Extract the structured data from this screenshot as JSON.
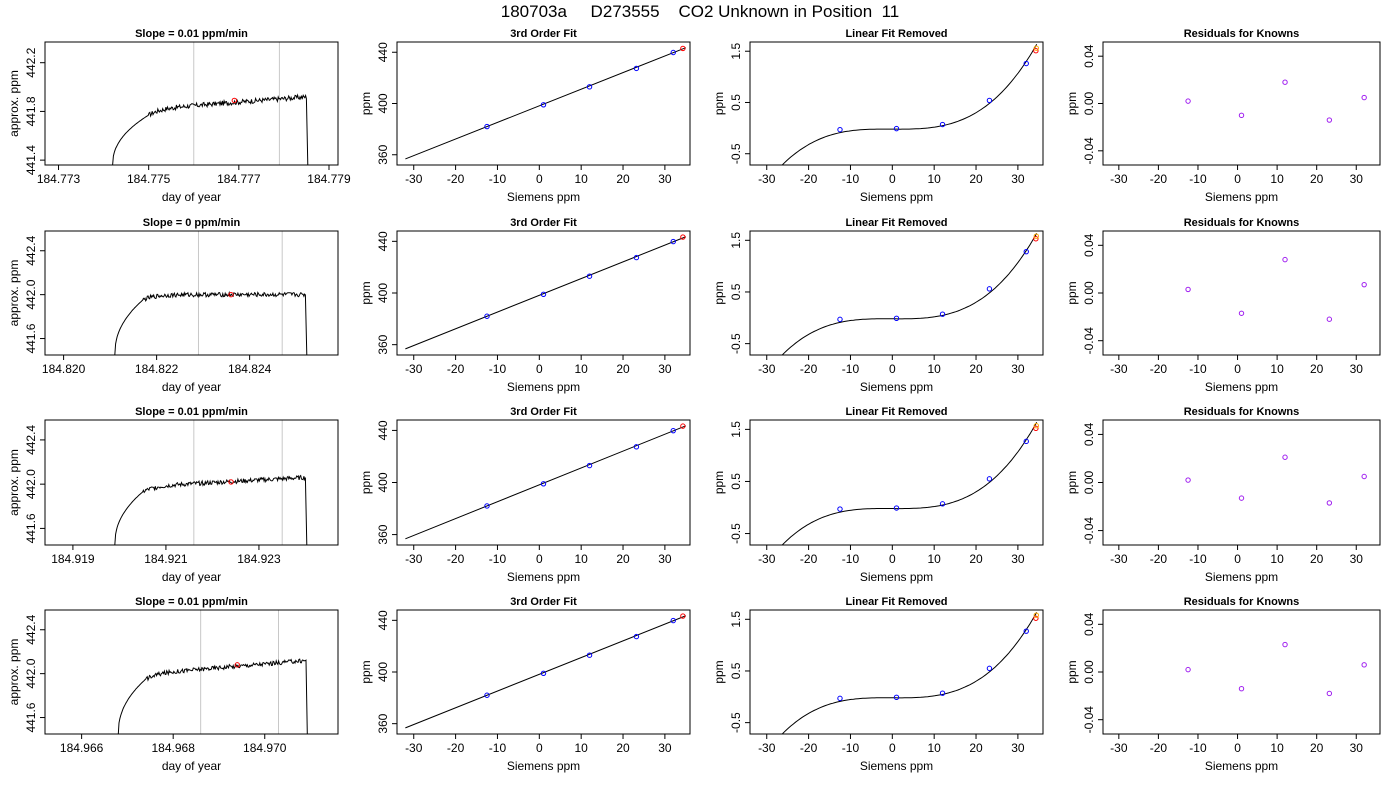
{
  "page_title": "180703a     D273555    CO2 Unknown in Position  11",
  "colors": {
    "trace": "#000000",
    "window_lines": "#c8c8c8",
    "known_points": "#0000ff",
    "unknown_point": "#ff0000",
    "unknown_alt_point": "#ffa500",
    "residual_points": "#a020f0"
  },
  "chart_data": [
    {
      "type": "line",
      "title": "Slope =  0.01  ppm/min",
      "xlabel": "day of year",
      "ylabel": "approx. ppm",
      "xlim": [
        184.7727,
        184.7792
      ],
      "ylim": [
        441.36,
        442.37
      ],
      "xticks": [
        "184.773",
        "184.775",
        "184.777",
        "184.779"
      ],
      "xtick_values": [
        184.773,
        184.775,
        184.777,
        184.779
      ],
      "yticks": [
        "441.4",
        "441.8",
        "442.2"
      ],
      "ytick_values": [
        441.4,
        441.8,
        442.2
      ],
      "trace": {
        "x_start": 184.7742,
        "x_rise_end": 184.775,
        "x_end": 184.7785,
        "plateau_start": 441.82,
        "plateau_end": 441.92,
        "y_bottom": 441.36
      },
      "window_lines": [
        184.776,
        184.7779
      ],
      "unknown_point": {
        "x": 184.7769,
        "y": 441.89
      }
    },
    {
      "type": "line",
      "title": "3rd Order Fit",
      "xlabel": "Siemens ppm",
      "ylabel": "ppm",
      "xlim": [
        -34,
        36
      ],
      "ylim": [
        352,
        448
      ],
      "xticks": [
        "-30",
        "-20",
        "-10",
        "0",
        "10",
        "20",
        "30"
      ],
      "xtick_values": [
        -30,
        -20,
        -10,
        0,
        10,
        20,
        30
      ],
      "yticks": [
        "360",
        "400",
        "440"
      ],
      "ytick_values": [
        360,
        400,
        440
      ],
      "fit": {
        "x_from": -32,
        "x_to": 35,
        "intercept": 398.2,
        "slope": 1.296
      },
      "knowns": [
        {
          "x": -12.5,
          "y": 382.0
        },
        {
          "x": 1.0,
          "y": 399.0
        },
        {
          "x": 12.0,
          "y": 413.0
        },
        {
          "x": 23.2,
          "y": 427.4
        },
        {
          "x": 32.0,
          "y": 439.8
        }
      ],
      "unknown": [
        {
          "x": 34.3,
          "y": 443.0
        }
      ]
    },
    {
      "type": "line",
      "title": "Linear Fit Removed",
      "xlabel": "Siemens ppm",
      "ylabel": "ppm",
      "xlim": [
        -34,
        36
      ],
      "ylim": [
        -0.72,
        1.68
      ],
      "xticks": [
        "-30",
        "-20",
        "-10",
        "0",
        "10",
        "20",
        "30"
      ],
      "xtick_values": [
        -30,
        -20,
        -10,
        0,
        10,
        20,
        30
      ],
      "yticks": [
        "-0.5",
        "0.5",
        "1.5"
      ],
      "ytick_values": [
        -0.5,
        0.5,
        1.5
      ],
      "curve": {
        "x_from": -32,
        "x_to": 34.5,
        "coeffs": [
          -0.02,
          -0.00045,
          2.4e-05,
          4e-05
        ]
      },
      "knowns": [
        {
          "x": -12.5,
          "y": -0.03
        },
        {
          "x": 1.0,
          "y": -0.01
        },
        {
          "x": 12.0,
          "y": 0.07
        },
        {
          "x": 23.2,
          "y": 0.54
        },
        {
          "x": 32.0,
          "y": 1.26
        }
      ],
      "unknown": [
        {
          "x": 34.3,
          "y": 1.51
        },
        {
          "x": 34.4,
          "y": 1.56
        }
      ]
    },
    {
      "type": "scatter",
      "title": "Residuals for Knowns",
      "xlabel": "Siemens ppm",
      "ylabel": "ppm",
      "xlim": [
        -34,
        36
      ],
      "ylim": [
        -0.052,
        0.052
      ],
      "xticks": [
        "-30",
        "-20",
        "-10",
        "0",
        "10",
        "20",
        "30"
      ],
      "xtick_values": [
        -30,
        -20,
        -10,
        0,
        10,
        20,
        30
      ],
      "yticks": [
        "-0.04",
        "0.00",
        "0.04"
      ],
      "ytick_values": [
        -0.04,
        0.0,
        0.04
      ],
      "points": [
        {
          "x": -12.5,
          "y": 0.002
        },
        {
          "x": 1.0,
          "y": -0.01
        },
        {
          "x": 12.0,
          "y": 0.018
        },
        {
          "x": 23.2,
          "y": -0.014
        },
        {
          "x": 32.0,
          "y": 0.005
        }
      ]
    },
    {
      "type": "line",
      "title": "Slope =  0  ppm/min",
      "xlabel": "day of year",
      "ylabel": "approx. ppm",
      "xlim": [
        184.8196,
        184.8259
      ],
      "ylim": [
        441.45,
        442.58
      ],
      "xticks": [
        "184.820",
        "184.822",
        "184.824"
      ],
      "xtick_values": [
        184.82,
        184.822,
        184.824
      ],
      "yticks": [
        "441.6",
        "442.0",
        "442.4"
      ],
      "ytick_values": [
        441.6,
        442.0,
        442.4
      ],
      "trace": {
        "x_start": 184.8211,
        "x_rise_end": 184.8217,
        "x_end": 184.8252,
        "plateau_start": 442.0,
        "plateau_end": 442.0,
        "y_bottom": 441.45
      },
      "window_lines": [
        184.8229,
        184.8247
      ],
      "unknown_point": {
        "x": 184.8236,
        "y": 442.0
      }
    },
    {
      "type": "line",
      "title": "3rd Order Fit",
      "xlabel": "Siemens ppm",
      "ylabel": "ppm",
      "xlim": [
        -34,
        36
      ],
      "ylim": [
        352,
        448
      ],
      "xticks": [
        "-30",
        "-20",
        "-10",
        "0",
        "10",
        "20",
        "30"
      ],
      "xtick_values": [
        -30,
        -20,
        -10,
        0,
        10,
        20,
        30
      ],
      "yticks": [
        "360",
        "400",
        "440"
      ],
      "ytick_values": [
        360,
        400,
        440
      ],
      "fit": {
        "x_from": -32,
        "x_to": 35,
        "intercept": 398.2,
        "slope": 1.296
      },
      "knowns": [
        {
          "x": -12.5,
          "y": 382.0
        },
        {
          "x": 1.0,
          "y": 399.0
        },
        {
          "x": 12.0,
          "y": 413.0
        },
        {
          "x": 23.2,
          "y": 427.4
        },
        {
          "x": 32.0,
          "y": 439.8
        }
      ],
      "unknown": [
        {
          "x": 34.3,
          "y": 443.3
        }
      ]
    },
    {
      "type": "line",
      "title": "Linear Fit Removed",
      "xlabel": "Siemens ppm",
      "ylabel": "ppm",
      "xlim": [
        -34,
        36
      ],
      "ylim": [
        -0.72,
        1.68
      ],
      "xticks": [
        "-30",
        "-20",
        "-10",
        "0",
        "10",
        "20",
        "30"
      ],
      "xtick_values": [
        -30,
        -20,
        -10,
        0,
        10,
        20,
        30
      ],
      "yticks": [
        "-0.5",
        "0.5",
        "1.5"
      ],
      "ytick_values": [
        -0.5,
        0.5,
        1.5
      ],
      "curve": {
        "x_from": -32,
        "x_to": 34.5,
        "coeffs": [
          -0.02,
          -0.00045,
          2.4e-05,
          4e-05
        ]
      },
      "knowns": [
        {
          "x": -12.5,
          "y": -0.03
        },
        {
          "x": 1.0,
          "y": -0.01
        },
        {
          "x": 12.0,
          "y": 0.07
        },
        {
          "x": 23.2,
          "y": 0.56
        },
        {
          "x": 32.0,
          "y": 1.28
        }
      ],
      "unknown": [
        {
          "x": 34.3,
          "y": 1.53
        },
        {
          "x": 34.4,
          "y": 1.58
        }
      ]
    },
    {
      "type": "scatter",
      "title": "Residuals for Knowns",
      "xlabel": "Siemens ppm",
      "ylabel": "ppm",
      "xlim": [
        -34,
        36
      ],
      "ylim": [
        -0.052,
        0.052
      ],
      "xticks": [
        "-30",
        "-20",
        "-10",
        "0",
        "10",
        "20",
        "30"
      ],
      "xtick_values": [
        -30,
        -20,
        -10,
        0,
        10,
        20,
        30
      ],
      "yticks": [
        "-0.04",
        "0.00",
        "0.04"
      ],
      "ytick_values": [
        -0.04,
        0.0,
        0.04
      ],
      "points": [
        {
          "x": -12.5,
          "y": 0.003
        },
        {
          "x": 1.0,
          "y": -0.017
        },
        {
          "x": 12.0,
          "y": 0.028
        },
        {
          "x": 23.2,
          "y": -0.022
        },
        {
          "x": 32.0,
          "y": 0.007
        }
      ]
    },
    {
      "type": "line",
      "title": "Slope =  0.01  ppm/min",
      "xlabel": "day of year",
      "ylabel": "approx. ppm",
      "xlim": [
        184.9184,
        184.9247
      ],
      "ylim": [
        441.45,
        442.58
      ],
      "xticks": [
        "184.919",
        "184.921",
        "184.923"
      ],
      "xtick_values": [
        184.919,
        184.921,
        184.923
      ],
      "yticks": [
        "441.6",
        "442.0",
        "442.4"
      ],
      "ytick_values": [
        441.6,
        442.0,
        442.4
      ],
      "trace": {
        "x_start": 184.9199,
        "x_rise_end": 184.9205,
        "x_end": 184.924,
        "plateau_start": 441.98,
        "plateau_end": 442.06,
        "y_bottom": 441.45
      },
      "window_lines": [
        184.9216,
        184.9235
      ],
      "unknown_point": {
        "x": 184.9224,
        "y": 442.02
      }
    },
    {
      "type": "line",
      "title": "3rd Order Fit",
      "xlabel": "Siemens ppm",
      "ylabel": "ppm",
      "xlim": [
        -34,
        36
      ],
      "ylim": [
        352,
        448
      ],
      "xticks": [
        "-30",
        "-20",
        "-10",
        "0",
        "10",
        "20",
        "30"
      ],
      "xtick_values": [
        -30,
        -20,
        -10,
        0,
        10,
        20,
        30
      ],
      "yticks": [
        "360",
        "400",
        "440"
      ],
      "ytick_values": [
        360,
        400,
        440
      ],
      "fit": {
        "x_from": -32,
        "x_to": 35,
        "intercept": 398.2,
        "slope": 1.296
      },
      "knowns": [
        {
          "x": -12.5,
          "y": 382.0
        },
        {
          "x": 1.0,
          "y": 399.0
        },
        {
          "x": 12.0,
          "y": 413.0
        },
        {
          "x": 23.2,
          "y": 427.4
        },
        {
          "x": 32.0,
          "y": 439.8
        }
      ],
      "unknown": [
        {
          "x": 34.3,
          "y": 443.3
        }
      ]
    },
    {
      "type": "line",
      "title": "Linear Fit Removed",
      "xlabel": "Siemens ppm",
      "ylabel": "ppm",
      "xlim": [
        -34,
        36
      ],
      "ylim": [
        -0.72,
        1.68
      ],
      "xticks": [
        "-30",
        "-20",
        "-10",
        "0",
        "10",
        "20",
        "30"
      ],
      "xtick_values": [
        -30,
        -20,
        -10,
        0,
        10,
        20,
        30
      ],
      "yticks": [
        "-0.5",
        "0.5",
        "1.5"
      ],
      "ytick_values": [
        -0.5,
        0.5,
        1.5
      ],
      "curve": {
        "x_from": -32,
        "x_to": 34.5,
        "coeffs": [
          -0.02,
          -0.00045,
          2.4e-05,
          4e-05
        ]
      },
      "knowns": [
        {
          "x": -12.5,
          "y": -0.03
        },
        {
          "x": 1.0,
          "y": -0.01
        },
        {
          "x": 12.0,
          "y": 0.07
        },
        {
          "x": 23.2,
          "y": 0.55
        },
        {
          "x": 32.0,
          "y": 1.27
        }
      ],
      "unknown": [
        {
          "x": 34.3,
          "y": 1.52
        },
        {
          "x": 34.4,
          "y": 1.57
        }
      ]
    },
    {
      "type": "scatter",
      "title": "Residuals for Knowns",
      "xlabel": "Siemens ppm",
      "ylabel": "ppm",
      "xlim": [
        -34,
        36
      ],
      "ylim": [
        -0.052,
        0.052
      ],
      "xticks": [
        "-30",
        "-20",
        "-10",
        "0",
        "10",
        "20",
        "30"
      ],
      "xtick_values": [
        -30,
        -20,
        -10,
        0,
        10,
        20,
        30
      ],
      "yticks": [
        "-0.04",
        "0.00",
        "0.04"
      ],
      "ytick_values": [
        -0.04,
        0.0,
        0.04
      ],
      "points": [
        {
          "x": -12.5,
          "y": 0.002
        },
        {
          "x": 1.0,
          "y": -0.013
        },
        {
          "x": 12.0,
          "y": 0.021
        },
        {
          "x": 23.2,
          "y": -0.017
        },
        {
          "x": 32.0,
          "y": 0.005
        }
      ]
    },
    {
      "type": "line",
      "title": "Slope =  0.01  ppm/min",
      "xlabel": "day of year",
      "ylabel": "approx. ppm",
      "xlim": [
        184.9652,
        184.9716
      ],
      "ylim": [
        441.45,
        442.58
      ],
      "xticks": [
        "184.966",
        "184.968",
        "184.970"
      ],
      "xtick_values": [
        184.966,
        184.968,
        184.97
      ],
      "yticks": [
        "441.6",
        "442.0",
        "442.4"
      ],
      "ytick_values": [
        441.6,
        442.0,
        442.4
      ],
      "trace": {
        "x_start": 184.9668,
        "x_rise_end": 184.9674,
        "x_end": 184.9709,
        "plateau_start": 442.0,
        "plateau_end": 442.12,
        "y_bottom": 441.45
      },
      "window_lines": [
        184.9686,
        184.9703
      ],
      "unknown_point": {
        "x": 184.9694,
        "y": 442.08
      }
    },
    {
      "type": "line",
      "title": "3rd Order Fit",
      "xlabel": "Siemens ppm",
      "ylabel": "ppm",
      "xlim": [
        -34,
        36
      ],
      "ylim": [
        352,
        448
      ],
      "xticks": [
        "-30",
        "-20",
        "-10",
        "0",
        "10",
        "20",
        "30"
      ],
      "xtick_values": [
        -30,
        -20,
        -10,
        0,
        10,
        20,
        30
      ],
      "yticks": [
        "360",
        "400",
        "440"
      ],
      "ytick_values": [
        360,
        400,
        440
      ],
      "fit": {
        "x_from": -32,
        "x_to": 35,
        "intercept": 398.2,
        "slope": 1.296
      },
      "knowns": [
        {
          "x": -12.5,
          "y": 382.0
        },
        {
          "x": 1.0,
          "y": 399.0
        },
        {
          "x": 12.0,
          "y": 413.0
        },
        {
          "x": 23.2,
          "y": 427.4
        },
        {
          "x": 32.0,
          "y": 439.8
        }
      ],
      "unknown": [
        {
          "x": 34.3,
          "y": 443.3
        }
      ]
    },
    {
      "type": "line",
      "title": "Linear Fit Removed",
      "xlabel": "Siemens ppm",
      "ylabel": "ppm",
      "xlim": [
        -34,
        36
      ],
      "ylim": [
        -0.72,
        1.68
      ],
      "xticks": [
        "-30",
        "-20",
        "-10",
        "0",
        "10",
        "20",
        "30"
      ],
      "xtick_values": [
        -30,
        -20,
        -10,
        0,
        10,
        20,
        30
      ],
      "yticks": [
        "-0.5",
        "0.5",
        "1.5"
      ],
      "ytick_values": [
        -0.5,
        0.5,
        1.5
      ],
      "curve": {
        "x_from": -32,
        "x_to": 34.5,
        "coeffs": [
          -0.02,
          -0.00045,
          2.4e-05,
          4e-05
        ]
      },
      "knowns": [
        {
          "x": -12.5,
          "y": -0.03
        },
        {
          "x": 1.0,
          "y": -0.01
        },
        {
          "x": 12.0,
          "y": 0.07
        },
        {
          "x": 23.2,
          "y": 0.55
        },
        {
          "x": 32.0,
          "y": 1.27
        }
      ],
      "unknown": [
        {
          "x": 34.3,
          "y": 1.52
        },
        {
          "x": 34.4,
          "y": 1.58
        }
      ]
    },
    {
      "type": "scatter",
      "title": "Residuals for Knowns",
      "xlabel": "Siemens ppm",
      "ylabel": "ppm",
      "xlim": [
        -34,
        36
      ],
      "ylim": [
        -0.052,
        0.052
      ],
      "xticks": [
        "-30",
        "-20",
        "-10",
        "0",
        "10",
        "20",
        "30"
      ],
      "xtick_values": [
        -30,
        -20,
        -10,
        0,
        10,
        20,
        30
      ],
      "points": [
        {
          "x": -12.5,
          "y": 0.002
        },
        {
          "x": 1.0,
          "y": -0.014
        },
        {
          "x": 12.0,
          "y": 0.023
        },
        {
          "x": 23.2,
          "y": -0.018
        },
        {
          "x": 32.0,
          "y": 0.006
        }
      ],
      "yticks": [
        "-0.04",
        "0.00",
        "0.04"
      ],
      "ytick_values": [
        -0.04,
        0.0,
        0.04
      ]
    }
  ]
}
